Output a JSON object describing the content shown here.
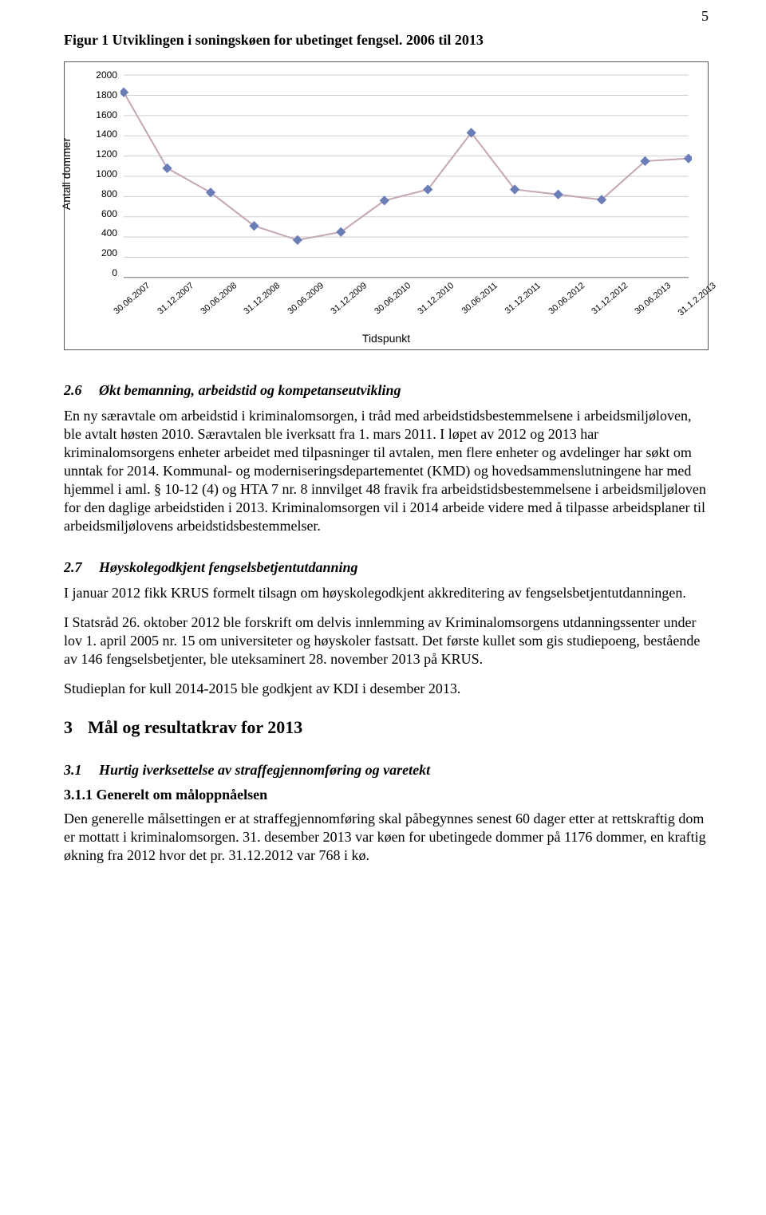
{
  "page_number": "5",
  "figure_title": "Figur 1 Utviklingen i soningskøen for ubetinget fengsel. 2006 til 2013",
  "chart": {
    "type": "line",
    "y_label": "Antall dommer",
    "x_label": "Tidspunkt",
    "categories": [
      "30.06.2007",
      "31.12.2007",
      "30.06.2008",
      "31.12.2008",
      "30.06.2009",
      "31.12.2009",
      "30.06.2010",
      "31.12.2010",
      "30.06.2011",
      "31.12.2011",
      "30.06.2012",
      "31.12.2012",
      "30.06.2013",
      "31.1.2.2013"
    ],
    "values": [
      1830,
      1080,
      840,
      510,
      370,
      450,
      760,
      870,
      1430,
      870,
      820,
      768,
      1150,
      1176
    ],
    "ylim": [
      0,
      2000
    ],
    "ytick_step": 200,
    "line_color": "#c4a8b5",
    "marker_color": "#6a7db7",
    "marker_shape": "diamond",
    "marker_size": 6,
    "line_width": 2,
    "gridline_color": "#cfcfcf",
    "axis_color": "#7a7a7a",
    "background_color": "#ffffff",
    "tick_font_size": 12,
    "label_font_size": 14,
    "xtick_rotation_deg": -40
  },
  "sections": {
    "s26": {
      "num": "2.6",
      "title": "Økt bemanning, arbeidstid og kompetanseutvikling",
      "para": "En ny særavtale om arbeidstid i kriminalomsorgen, i tråd med arbeidstidsbestemmelsene i arbeidsmiljøloven, ble avtalt høsten 2010. Særavtalen ble iverksatt fra 1. mars 2011. I løpet av 2012 og 2013 har kriminalomsorgens enheter arbeidet med tilpasninger til avtalen, men flere enheter og avdelinger har søkt om unntak for 2014. Kommunal- og moderniseringsdepartementet (KMD) og hovedsammenslutningene har med hjemmel i aml. § 10-12 (4) og HTA 7 nr. 8 innvilget 48 fravik fra arbeidstidsbestemmelsene i arbeidsmiljøloven for den daglige arbeidstiden i 2013. Kriminalomsorgen vil i 2014 arbeide videre med å tilpasse arbeidsplaner til arbeidsmiljølovens arbeidstidsbestemmelser."
    },
    "s27": {
      "num": "2.7",
      "title": "Høyskolegodkjent fengselsbetjentutdanning",
      "p1": "I januar 2012 fikk KRUS formelt tilsagn om høyskolegodkjent akkreditering av fengselsbetjentutdanningen.",
      "p2": "I Statsråd 26. oktober 2012 ble forskrift om delvis innlemming av Kriminalomsorgens utdanningssenter under lov 1. april 2005 nr. 15 om universiteter og høyskoler fastsatt. Det første kullet som gis studiepoeng, bestående av 146 fengselsbetjenter, ble uteksaminert 28. november 2013 på KRUS.",
      "p3": "Studieplan for kull 2014-2015 ble godkjent av KDI i desember 2013."
    },
    "h3": {
      "num": "3",
      "title": "Mål og resultatkrav for 2013"
    },
    "s31": {
      "num": "3.1",
      "title": "Hurtig iverksettelse av straffegjennomføring og varetekt"
    },
    "s311": {
      "title": "3.1.1 Generelt om måloppnåelsen",
      "para": "Den generelle målsettingen er at straffegjennomføring skal påbegynnes senest 60 dager etter at rettskraftig dom er mottatt i kriminalomsorgen. 31. desember 2013 var køen for ubetingede dommer på 1176 dommer, en kraftig økning fra 2012 hvor det pr. 31.12.2012 var 768 i kø."
    }
  }
}
